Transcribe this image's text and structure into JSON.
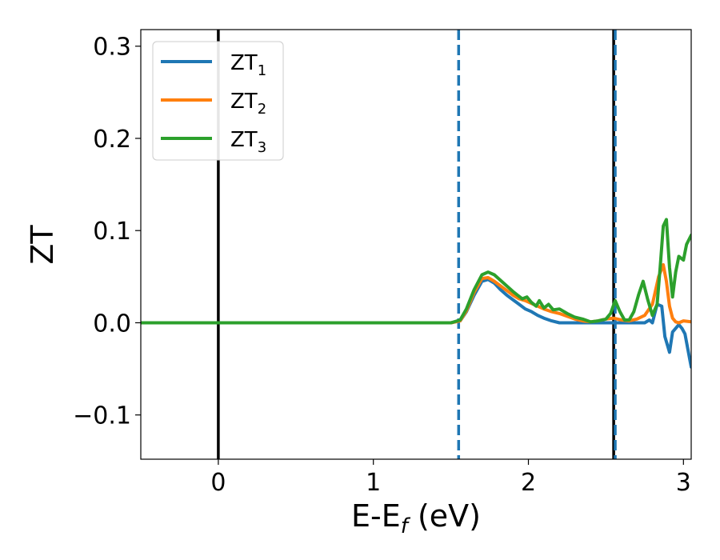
{
  "chart_data": {
    "type": "line",
    "xlabel": "E-E",
    "xlabel_subscript": "f",
    "xlabel_unit": " (eV)",
    "ylabel": "ZT",
    "xlim": [
      -0.5,
      3.05
    ],
    "ylim": [
      -0.148,
      0.318
    ],
    "x_ticks": [
      0,
      1,
      2,
      3
    ],
    "x_tick_labels": [
      "0",
      "1",
      "2",
      "3"
    ],
    "y_ticks": [
      -0.1,
      0.0,
      0.1,
      0.2,
      0.3
    ],
    "y_tick_labels": [
      "−0.1",
      "0.0",
      "0.1",
      "0.2",
      "0.3"
    ],
    "grid": false,
    "legend_placement": "top-left",
    "colors": {
      "ZT1": "#1f77b4",
      "ZT2": "#ff7f0e",
      "ZT3": "#2ca02c",
      "vline_solid": "#000000",
      "vline_dashed": "#1f77b4"
    },
    "reference_lines": [
      {
        "x": 0.0,
        "style": "solid",
        "color": "#000000"
      },
      {
        "x": 1.55,
        "style": "dashed",
        "color": "#1f77b4"
      },
      {
        "x": 2.55,
        "style": "solid",
        "color": "#000000"
      },
      {
        "x": 2.56,
        "style": "dashed",
        "color": "#1f77b4"
      }
    ],
    "series": [
      {
        "name": "ZT",
        "subscript": "1",
        "color": "#1f77b4",
        "x": [
          -0.5,
          1.5,
          1.56,
          1.6,
          1.65,
          1.7,
          1.74,
          1.78,
          1.82,
          1.86,
          1.9,
          1.94,
          1.98,
          2.02,
          2.06,
          2.1,
          2.15,
          2.2,
          2.3,
          2.4,
          2.5,
          2.55,
          2.6,
          2.65,
          2.7,
          2.75,
          2.78,
          2.8,
          2.83,
          2.86,
          2.88,
          2.91,
          2.93,
          2.95,
          2.97,
          2.99,
          3.01,
          3.03,
          3.05
        ],
        "y": [
          0.0,
          0.0,
          0.002,
          0.012,
          0.03,
          0.045,
          0.047,
          0.043,
          0.036,
          0.03,
          0.025,
          0.02,
          0.015,
          0.012,
          0.008,
          0.005,
          0.002,
          0.0,
          0.0,
          0.0,
          0.0,
          0.0,
          0.0,
          0.0,
          0.0,
          0.0,
          0.003,
          0.0,
          0.02,
          0.018,
          -0.015,
          -0.032,
          -0.01,
          -0.006,
          -0.002,
          -0.006,
          -0.012,
          -0.03,
          -0.048
        ]
      },
      {
        "name": "ZT",
        "subscript": "2",
        "color": "#ff7f0e",
        "x": [
          -0.5,
          1.5,
          1.56,
          1.6,
          1.65,
          1.7,
          1.74,
          1.78,
          1.82,
          1.86,
          1.9,
          1.94,
          1.98,
          2.02,
          2.06,
          2.1,
          2.15,
          2.2,
          2.25,
          2.3,
          2.35,
          2.4,
          2.45,
          2.5,
          2.55,
          2.6,
          2.65,
          2.7,
          2.75,
          2.8,
          2.84,
          2.87,
          2.89,
          2.91,
          2.93,
          2.95,
          2.97,
          3.0,
          3.05
        ],
        "y": [
          0.0,
          0.0,
          0.002,
          0.013,
          0.033,
          0.048,
          0.049,
          0.045,
          0.04,
          0.035,
          0.03,
          0.026,
          0.024,
          0.021,
          0.018,
          0.015,
          0.012,
          0.01,
          0.007,
          0.004,
          0.002,
          0.001,
          0.002,
          0.004,
          0.005,
          0.003,
          0.002,
          0.004,
          0.008,
          0.02,
          0.05,
          0.063,
          0.045,
          0.018,
          0.005,
          0.001,
          0.0,
          0.002,
          0.001
        ]
      },
      {
        "name": "ZT",
        "subscript": "3",
        "color": "#2ca02c",
        "x": [
          -0.5,
          1.5,
          1.56,
          1.6,
          1.65,
          1.7,
          1.74,
          1.78,
          1.82,
          1.86,
          1.9,
          1.93,
          1.96,
          1.99,
          2.02,
          2.05,
          2.07,
          2.1,
          2.13,
          2.16,
          2.2,
          2.25,
          2.3,
          2.35,
          2.4,
          2.45,
          2.5,
          2.53,
          2.56,
          2.59,
          2.62,
          2.65,
          2.68,
          2.71,
          2.74,
          2.77,
          2.8,
          2.83,
          2.85,
          2.87,
          2.89,
          2.91,
          2.93,
          2.95,
          2.97,
          3.0,
          3.02,
          3.05
        ],
        "y": [
          0.0,
          0.0,
          0.003,
          0.015,
          0.036,
          0.052,
          0.055,
          0.052,
          0.046,
          0.04,
          0.034,
          0.03,
          0.026,
          0.028,
          0.022,
          0.018,
          0.024,
          0.016,
          0.02,
          0.014,
          0.015,
          0.01,
          0.006,
          0.004,
          0.001,
          0.002,
          0.004,
          0.01,
          0.024,
          0.012,
          0.003,
          0.003,
          0.012,
          0.03,
          0.045,
          0.025,
          0.008,
          0.02,
          0.06,
          0.105,
          0.112,
          0.06,
          0.028,
          0.055,
          0.072,
          0.068,
          0.085,
          0.095
        ]
      }
    ]
  }
}
